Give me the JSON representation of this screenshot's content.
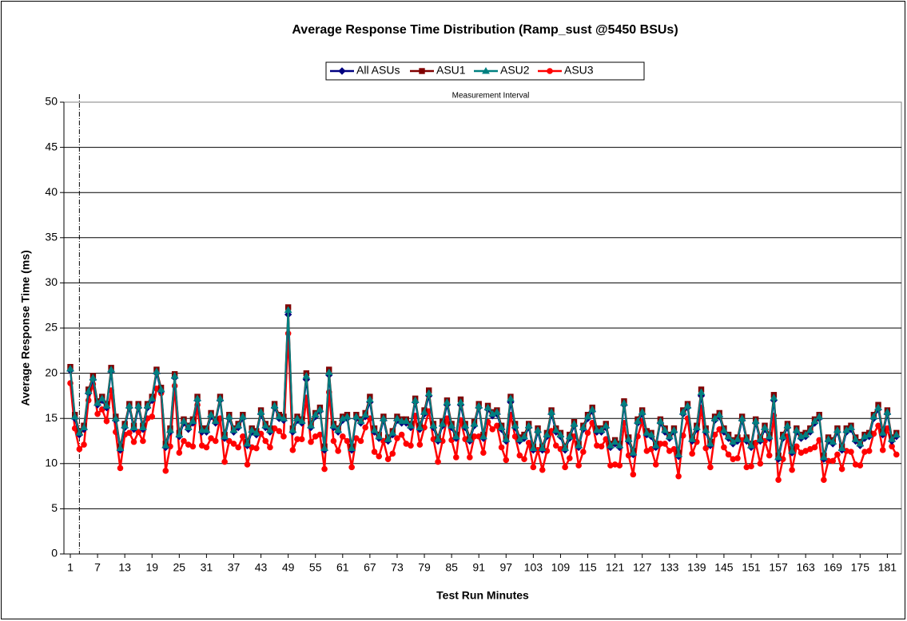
{
  "chart_data": {
    "type": "line",
    "title": "Average Response Time Distribution (Ramp_sust @5450 BSUs)",
    "x_label": "Test Run Minutes",
    "y_label": "Average Response Time (ms)",
    "annotation": {
      "text": "Measurement Interval",
      "x": 3
    },
    "categories": [
      "1",
      null,
      null,
      null,
      null,
      null,
      "7",
      null,
      null,
      null,
      null,
      null,
      "13",
      null,
      null,
      null,
      null,
      null,
      "19",
      null,
      null,
      null,
      null,
      null,
      "25",
      null,
      null,
      null,
      null,
      null,
      "31",
      null,
      null,
      null,
      null,
      null,
      "37",
      null,
      null,
      null,
      null,
      null,
      "43",
      null,
      null,
      null,
      null,
      null,
      "49",
      null,
      null,
      null,
      null,
      null,
      "55",
      null,
      null,
      null,
      null,
      null,
      "61",
      null,
      null,
      null,
      null,
      null,
      "67",
      null,
      null,
      null,
      null,
      null,
      "73",
      null,
      null,
      null,
      null,
      null,
      "79",
      null,
      null,
      null,
      null,
      null,
      "85",
      null,
      null,
      null,
      null,
      null,
      "91",
      null,
      null,
      null,
      null,
      null,
      "97",
      null,
      null,
      null,
      null,
      null,
      "103",
      null,
      null,
      null,
      null,
      null,
      "109",
      null,
      null,
      null,
      null,
      null,
      "115",
      null,
      null,
      null,
      null,
      null,
      "121",
      null,
      null,
      null,
      null,
      null,
      "127",
      null,
      null,
      null,
      null,
      null,
      "133",
      null,
      null,
      null,
      null,
      null,
      "139",
      null,
      null,
      null,
      null,
      null,
      "145",
      null,
      null,
      null,
      null,
      null,
      "151",
      null,
      null,
      null,
      null,
      null,
      "157",
      null,
      null,
      null,
      null,
      null,
      "163",
      null,
      null,
      null,
      null,
      null,
      "169",
      null,
      null,
      null,
      null,
      null,
      "175",
      null,
      null,
      null,
      null,
      null,
      "181",
      null,
      null
    ],
    "ylim": [
      0,
      50
    ],
    "yticks": [
      0,
      5,
      10,
      15,
      20,
      25,
      30,
      35,
      40,
      45,
      50
    ],
    "grid": true,
    "series": [
      {
        "name": "All ASUs",
        "color": "#000080",
        "marker": "diamond",
        "values": [
          20.3,
          15,
          13.2,
          13.8,
          17.8,
          19.3,
          16.5,
          17,
          16.2,
          20.2,
          14.8,
          11.5,
          14,
          16.2,
          13.8,
          16.2,
          13.8,
          16.2,
          17,
          20,
          18,
          11.8,
          13.5,
          19.5,
          13,
          14.5,
          13.8,
          14.5,
          17,
          13.5,
          13.5,
          15.2,
          14.5,
          17,
          12.8,
          15,
          13.5,
          14,
          15,
          12,
          13.5,
          13.2,
          15.5,
          14,
          13.5,
          16.2,
          15,
          14.8,
          26.5,
          13.5,
          14.8,
          14.5,
          19.3,
          14,
          15.2,
          15.8,
          11.5,
          19.8,
          14,
          13.5,
          14.8,
          15,
          11.5,
          15,
          14.5,
          15.2,
          16.8,
          13.5,
          12.8,
          14.8,
          12.5,
          13.2,
          14.8,
          14.5,
          14.5,
          14,
          16.8,
          13.8,
          15.5,
          17.5,
          14,
          12.5,
          14.2,
          16.5,
          14,
          12.8,
          16.5,
          14,
          12.5,
          14.2,
          16.2,
          12.8,
          16,
          15.3,
          15.5,
          13.8,
          12.5,
          16.8,
          14,
          12.5,
          12.8,
          14,
          11.5,
          13.5,
          11.5,
          13,
          15.5,
          13.5,
          13,
          11.5,
          12.8,
          14.2,
          11.8,
          13.8,
          15,
          15.8,
          13.5,
          13.5,
          14,
          11.8,
          12.2,
          11.8,
          16.5,
          12.5,
          11,
          14.5,
          15.5,
          13.2,
          13,
          11.8,
          14.5,
          13.5,
          12.8,
          13.5,
          10.8,
          15.5,
          16.2,
          12.5,
          13.8,
          17.5,
          13.5,
          12,
          14.8,
          15.2,
          13.5,
          12.8,
          12.2,
          12.5,
          14.8,
          12.5,
          11.8,
          14.5,
          12.5,
          13.8,
          12.8,
          17,
          10.5,
          12.8,
          14,
          11.2,
          13.5,
          12.8,
          13,
          13.5,
          14.5,
          15,
          10.5,
          12.5,
          12.2,
          13.5,
          11.5,
          13.5,
          13.8,
          12.5,
          12,
          12.8,
          13,
          15,
          16,
          13.2,
          15.5,
          12.5,
          13
        ]
      },
      {
        "name": "ASU1",
        "color": "#800000",
        "marker": "square",
        "values": [
          20.7,
          15.4,
          13.6,
          14.2,
          18.2,
          19.7,
          16.9,
          17.4,
          16.6,
          20.6,
          15.2,
          11.9,
          14.4,
          16.6,
          14.2,
          16.6,
          14.2,
          16.6,
          17.4,
          20.4,
          18.4,
          12.2,
          13.9,
          19.9,
          13.4,
          14.9,
          14.2,
          14.9,
          17.4,
          13.9,
          13.9,
          15.6,
          14.9,
          17.4,
          13.2,
          15.4,
          13.9,
          14.4,
          15.4,
          12.4,
          13.9,
          13.6,
          15.9,
          14.4,
          13.9,
          16.6,
          15.4,
          15.2,
          27.3,
          13.9,
          15.2,
          14.9,
          20,
          14.4,
          15.6,
          16.2,
          11.9,
          20.4,
          14.4,
          13.9,
          15.2,
          15.4,
          11.9,
          15.4,
          14.9,
          15.6,
          17.4,
          13.9,
          13.2,
          15.2,
          12.9,
          13.6,
          15.2,
          14.9,
          14.9,
          14.4,
          17.2,
          14.2,
          15.9,
          18.1,
          14.4,
          12.9,
          14.6,
          17,
          14.4,
          13.2,
          17.1,
          14.4,
          12.9,
          14.6,
          16.6,
          13.2,
          16.4,
          15.7,
          15.9,
          14.2,
          12.9,
          17.4,
          14.4,
          12.9,
          13.2,
          14.4,
          11.9,
          13.9,
          11.9,
          13.4,
          15.9,
          13.9,
          13.4,
          11.9,
          13.2,
          14.6,
          12.2,
          14.2,
          15.4,
          16.2,
          13.9,
          13.9,
          14.4,
          12.2,
          12.6,
          12.2,
          16.9,
          12.9,
          11.4,
          14.9,
          15.9,
          13.6,
          13.4,
          12.2,
          14.9,
          13.9,
          13.2,
          13.9,
          11.2,
          15.9,
          16.6,
          12.9,
          14.2,
          18.2,
          13.9,
          12.4,
          15.2,
          15.6,
          13.9,
          13.2,
          12.6,
          12.9,
          15.2,
          12.9,
          12.2,
          14.9,
          12.9,
          14.2,
          13.2,
          17.6,
          10.9,
          13.2,
          14.4,
          11.6,
          13.9,
          13.2,
          13.4,
          13.9,
          14.9,
          15.4,
          10.9,
          12.9,
          12.6,
          13.9,
          11.9,
          13.9,
          14.2,
          12.9,
          12.4,
          13.2,
          13.4,
          15.4,
          16.5,
          13.6,
          15.9,
          12.9,
          13.4
        ]
      },
      {
        "name": "ASU2",
        "color": "#008080",
        "marker": "triangle",
        "values": [
          20.5,
          15.2,
          13.4,
          14,
          18,
          19.5,
          16.7,
          17.2,
          16.4,
          20.4,
          15,
          11.7,
          14.2,
          16.4,
          14,
          16.4,
          14,
          16.4,
          17.2,
          20.2,
          18.2,
          12,
          13.7,
          19.7,
          13.2,
          14.7,
          14,
          14.7,
          17.2,
          13.7,
          13.7,
          15.4,
          14.7,
          17.2,
          13,
          15.2,
          13.7,
          14.2,
          15.2,
          12.2,
          13.7,
          13.4,
          15.7,
          14.2,
          13.7,
          16.4,
          15.2,
          15,
          27,
          13.7,
          15,
          14.7,
          19.7,
          14.2,
          15.4,
          16,
          11.7,
          20.1,
          14.2,
          13.7,
          15,
          15.2,
          11.7,
          15.2,
          14.7,
          15.4,
          17.1,
          13.7,
          13,
          15,
          12.7,
          13.4,
          15,
          14.7,
          14.7,
          14.2,
          17,
          14,
          15.7,
          17.8,
          14.2,
          12.7,
          14.4,
          16.8,
          14.2,
          13,
          16.8,
          14.2,
          12.7,
          14.4,
          16.4,
          13,
          16.2,
          15.5,
          15.7,
          14,
          12.7,
          17.2,
          14.2,
          12.7,
          13,
          14.2,
          11.7,
          13.7,
          11.7,
          13.2,
          15.7,
          13.7,
          13.2,
          11.7,
          13,
          14.4,
          12,
          14,
          15.2,
          16,
          13.7,
          13.7,
          14.2,
          12,
          12.4,
          12,
          16.7,
          12.7,
          11.2,
          14.7,
          15.7,
          13.4,
          13.2,
          12,
          14.7,
          13.7,
          13,
          13.7,
          11,
          15.7,
          16.4,
          12.7,
          14,
          17.9,
          13.7,
          12.2,
          15,
          15.4,
          13.7,
          13,
          12.4,
          12.7,
          15,
          12.7,
          12,
          14.7,
          12.7,
          14,
          13,
          17.3,
          10.7,
          13,
          14.2,
          11.4,
          13.7,
          13,
          13.2,
          13.7,
          14.7,
          15.2,
          10.7,
          12.7,
          12.4,
          13.7,
          11.7,
          13.7,
          14,
          12.7,
          12.2,
          13,
          13.2,
          15.2,
          16.2,
          13.4,
          15.7,
          12.7,
          13.2
        ]
      },
      {
        "name": "ASU3",
        "color": "#ff0000",
        "marker": "circle",
        "values": [
          18.9,
          13.9,
          11.6,
          12.1,
          17,
          18.8,
          15.5,
          16,
          14.7,
          18.1,
          13.5,
          9.5,
          13.2,
          13.4,
          12.4,
          13.5,
          12.5,
          15,
          15.2,
          18.3,
          17.8,
          9.2,
          11.9,
          18.6,
          11.2,
          12.5,
          12.1,
          11.9,
          16.5,
          12,
          11.8,
          12.8,
          12.5,
          15,
          10.2,
          12.5,
          12.2,
          11.8,
          13,
          9.9,
          11.8,
          11.7,
          13.3,
          12.5,
          11.8,
          13.9,
          13.6,
          13,
          24.4,
          11.5,
          12.7,
          12.7,
          17.3,
          12.4,
          13,
          13.2,
          9.4,
          17.9,
          12.5,
          11.4,
          13,
          12.5,
          9.6,
          12.8,
          12.5,
          14,
          15,
          11.3,
          10.8,
          12.5,
          10.5,
          11.1,
          12.8,
          13.2,
          12.2,
          12,
          15.3,
          12.1,
          14,
          15.8,
          12.7,
          10.2,
          12.5,
          15,
          12.6,
          10.7,
          14.8,
          12.7,
          10.7,
          13,
          13,
          11.2,
          14.6,
          13.8,
          14.2,
          11.8,
          10.4,
          15.4,
          13,
          10.9,
          10.5,
          12.3,
          9.6,
          11.5,
          9.3,
          11.4,
          13.6,
          12,
          11.6,
          9.6,
          10.6,
          13,
          9.8,
          11.3,
          13.4,
          14.5,
          12,
          11.9,
          12.7,
          9.8,
          9.9,
          9.8,
          14.5,
          10.9,
          8.8,
          13,
          14.7,
          11.4,
          11.6,
          9.9,
          12.2,
          12.2,
          11.4,
          11.6,
          8.6,
          13.1,
          15,
          11.1,
          12.4,
          16.2,
          11.7,
          9.6,
          13.2,
          13.8,
          11.8,
          11,
          10.5,
          10.6,
          12.6,
          9.6,
          9.7,
          12.3,
          10,
          12.5,
          10.9,
          15.3,
          8.2,
          10.5,
          13,
          9.3,
          11.9,
          11.2,
          11.4,
          11.6,
          11.8,
          12.6,
          8.2,
          10.3,
          10.3,
          11,
          9.4,
          11.4,
          11.3,
          9.9,
          9.8,
          11.3,
          11.4,
          13.3,
          14.2,
          11.5,
          13.9,
          11.9,
          11
        ]
      }
    ]
  }
}
